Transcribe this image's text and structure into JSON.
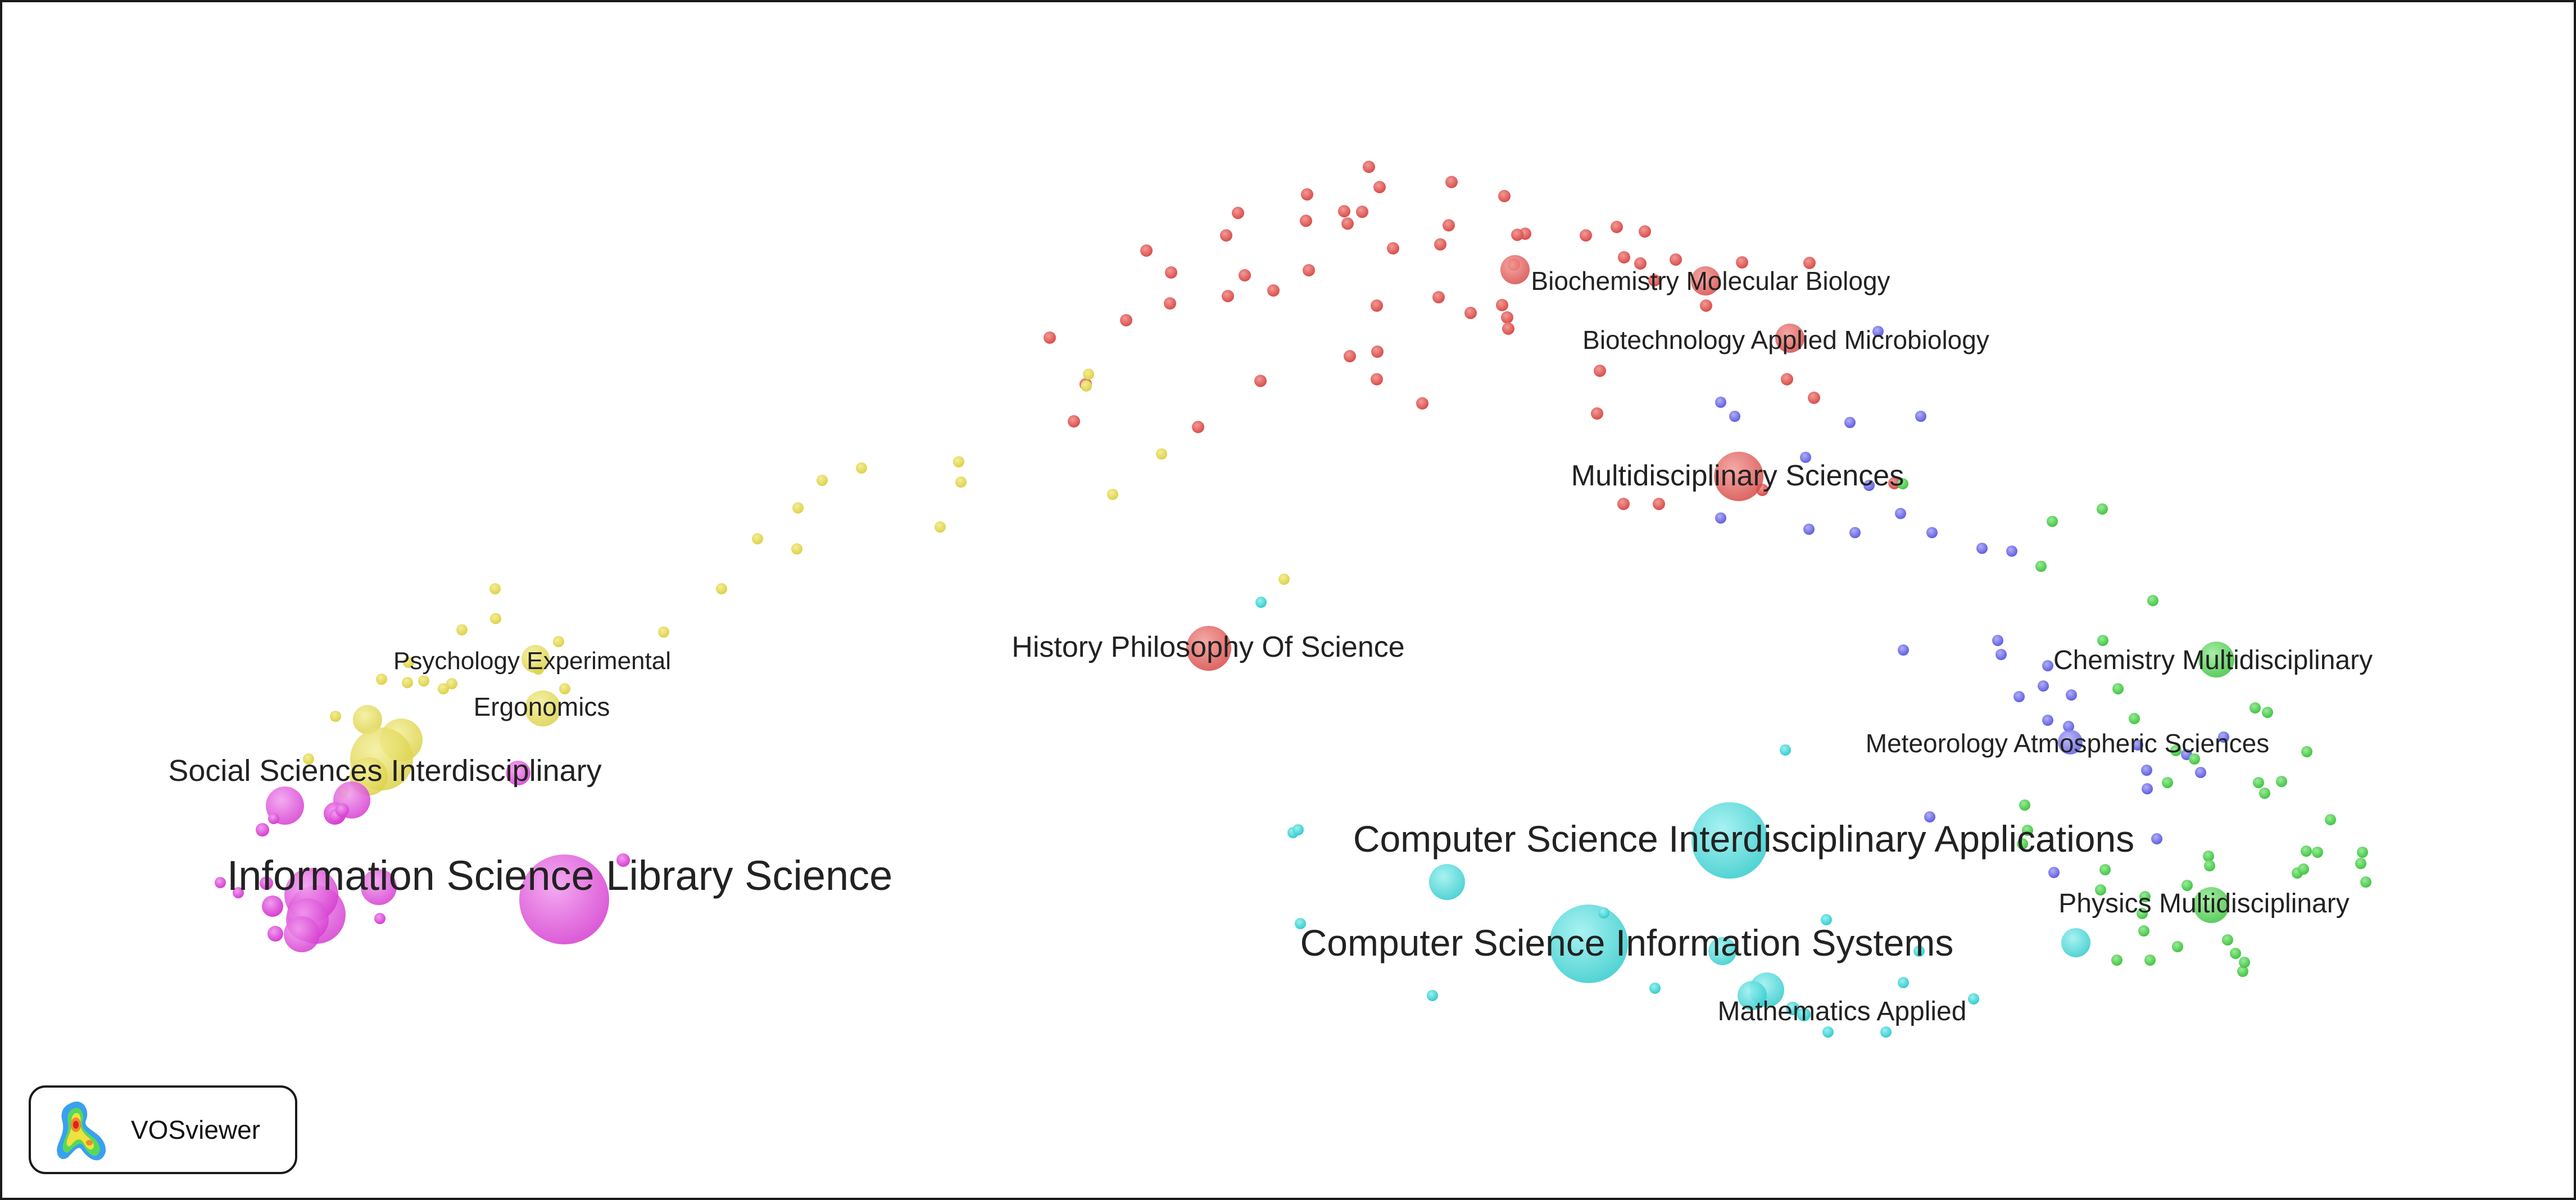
{
  "app": {
    "name": "VOSviewer"
  },
  "colors": {
    "cluster_red": "#e0625f",
    "cluster_yellow": "#e7df60",
    "cluster_magenta": "#e253dd",
    "cluster_cyan": "#4cd9da",
    "cluster_blue": "#7a78ea",
    "cluster_green": "#5ad65a",
    "label": "#222222",
    "frame": "#1a1a1a"
  },
  "labels": {
    "biochemistry": "Biochemistry Molecular Biology",
    "biotechnology": "Biotechnology Applied Microbiology",
    "multidisciplinary_sciences": "Multidisciplinary Sciences",
    "history_philosophy": "History Philosophy Of Science",
    "psychology_experimental": "Psychology Experimental",
    "ergonomics": "Ergonomics",
    "social_sciences": "Social Sciences Interdisciplinary",
    "information_science": "Information Science Library Science",
    "chemistry_multidisciplinary": "Chemistry Multidisciplinary",
    "meteorology": "Meteorology Atmospheric Sciences",
    "cs_interdisciplinary": "Computer Science Interdisciplinary Applications",
    "physics_multidisciplinary": "Physics Multidisciplinary",
    "cs_information_systems": "Computer Science Information Systems",
    "mathematics_applied": "Mathematics Applied"
  }
}
